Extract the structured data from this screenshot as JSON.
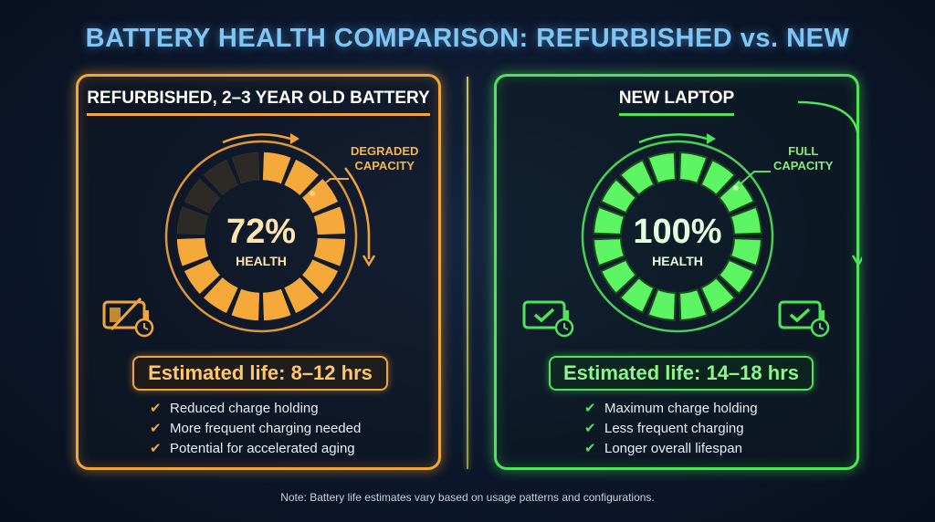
{
  "title": "BATTERY HEALTH COMPARISON: REFURBISHED vs. NEW",
  "left": {
    "heading": "REFURBISHED, 2–3 YEAR OLD BATTERY",
    "health_value": "72%",
    "health_fraction": 0.72,
    "health_label": "HEALTH",
    "callout_line1": "DEGRADED",
    "callout_line2": "CAPACITY",
    "life": "Estimated life: 8–12 hrs",
    "bullets": [
      "Reduced charge holding",
      "More frequent charging needed",
      "Potential for accelerated aging"
    ],
    "accent": "#f2a53a",
    "icons": [
      "battery-crossed-clock-icon"
    ]
  },
  "right": {
    "heading": "NEW LAPTOP",
    "health_value": "100%",
    "health_fraction": 1.0,
    "health_label": "HEALTH",
    "callout_line1": "FULL",
    "callout_line2": "CAPACITY",
    "life": "Estimated life: 14–18 hrs",
    "bullets": [
      "Maximum charge holding",
      "Less frequent charging",
      "Longer overall lifespan"
    ],
    "accent": "#4fe35a",
    "icons": [
      "battery-check-clock-icon",
      "battery-check-clock-icon"
    ]
  },
  "check_glyph": "✔",
  "note": "Note: Battery life estimates vary based on usage patterns and configurations."
}
